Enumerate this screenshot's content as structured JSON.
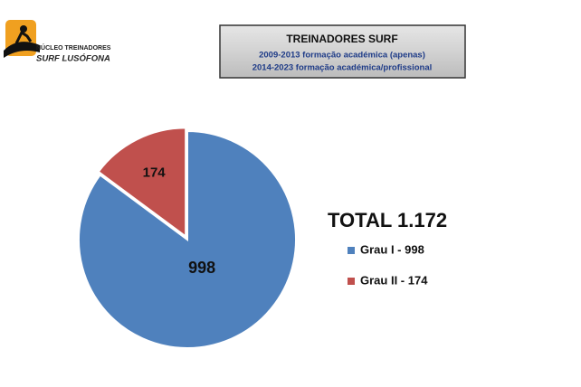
{
  "logo": [
    "NÚCLEO TREINADORES",
    "SURF LUSÓFONA"
  ],
  "chart_data": {
    "type": "pie",
    "title": "TREINADORES SURF",
    "subtitles": [
      "2009-2013 formação académica (apenas)",
      "2014-2023 formação académica/profissional"
    ],
    "annotation": "TOTAL 1.172",
    "categories": [
      "Grau I - 998",
      "Grau II - 174"
    ],
    "values": [
      998,
      174
    ],
    "colors": [
      "#4f81bd",
      "#c0504d"
    ]
  }
}
